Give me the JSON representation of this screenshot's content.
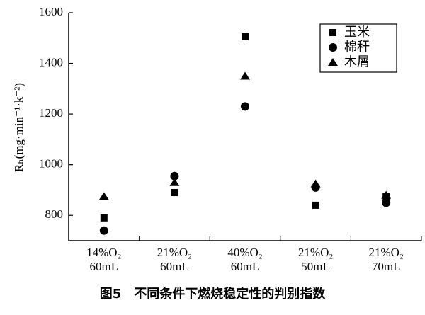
{
  "chart_data": {
    "type": "scatter",
    "caption": "图5　不同条件下燃烧稳定性的判别指数",
    "y_label": "Rₕ(mg·min⁻¹·k⁻²)",
    "categories": [
      [
        "14%O₂",
        "60mL"
      ],
      [
        "21%O₂",
        "60mL"
      ],
      [
        "40%O₂",
        "60mL"
      ],
      [
        "21%O₂",
        "50mL"
      ],
      [
        "21%O₂",
        "70mL"
      ]
    ],
    "series": [
      {
        "name": "玉米",
        "color": "#000000",
        "marker": "square",
        "values": [
          790,
          890,
          1505,
          840,
          875
        ]
      },
      {
        "name": "棉秆",
        "color": "#000000",
        "marker": "circle",
        "values": [
          740,
          955,
          1230,
          910,
          850
        ]
      },
      {
        "name": "木屑",
        "color": "#000000",
        "marker": "triangle",
        "values": [
          875,
          930,
          1350,
          925,
          880
        ]
      }
    ],
    "ylim": [
      700,
      1600
    ],
    "yticks": [
      800,
      1000,
      1200,
      1400,
      1600
    ],
    "grid": false,
    "legend": "upper right"
  }
}
